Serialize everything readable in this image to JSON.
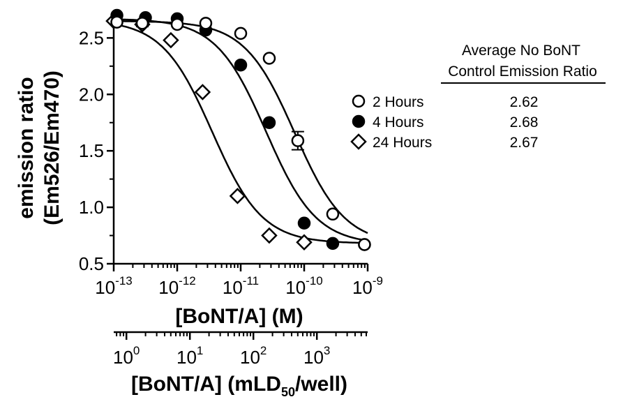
{
  "chart_data": {
    "type": "scatter",
    "ylabel_line1": "emission ratio",
    "ylabel_line2": "(Em526/Em470)",
    "xlabel": "[BoNT/A] (M)",
    "xlabel2_main": "[BoNT/A] (mLD",
    "xlabel2_sub": "50",
    "xlabel2_end": "/well)",
    "xlim_log10": [
      -13,
      -9
    ],
    "ylim": [
      0.5,
      2.7
    ],
    "yticks": [
      {
        "value": 0.5,
        "label": "0.5"
      },
      {
        "value": 1.0,
        "label": "1.0"
      },
      {
        "value": 1.5,
        "label": "1.5"
      },
      {
        "value": 2.0,
        "label": "2.0"
      },
      {
        "value": 2.5,
        "label": "2.5"
      }
    ],
    "xticks": [
      {
        "exp": -13,
        "base": "10",
        "sup": "-13"
      },
      {
        "exp": -12,
        "base": "10",
        "sup": "-12"
      },
      {
        "exp": -11,
        "base": "10",
        "sup": "-11"
      },
      {
        "exp": -10,
        "base": "10",
        "sup": "-10"
      },
      {
        "exp": -9,
        "base": "10",
        "sup": "-9"
      }
    ],
    "x2_offset_log10": 12.8,
    "x2_range_log10": [
      -0.2,
      3.8
    ],
    "x2ticks": [
      {
        "exp": 0,
        "base": "10",
        "sup": "0"
      },
      {
        "exp": 1,
        "base": "10",
        "sup": "1"
      },
      {
        "exp": 2,
        "base": "10",
        "sup": "2"
      },
      {
        "exp": 3,
        "base": "10",
        "sup": "3"
      }
    ],
    "series": [
      {
        "name": "2 Hours",
        "marker": "open-circle",
        "x_log10": [
          -12.95,
          -12.55,
          -12.0,
          -11.55,
          -11.0,
          -10.55,
          -10.1,
          -9.55,
          -9.05
        ],
        "y": [
          2.64,
          2.63,
          2.62,
          2.63,
          2.54,
          2.32,
          1.59,
          0.94,
          0.67
        ],
        "err": [
          0,
          0,
          0,
          0,
          0,
          0,
          0.08,
          0,
          0
        ],
        "fit": {
          "top": 2.65,
          "bottom": 0.67,
          "log_ec50": -10.15,
          "hill": 1.1
        }
      },
      {
        "name": "4 Hours",
        "marker": "filled-circle",
        "x_log10": [
          -12.95,
          -12.5,
          -12.0,
          -11.55,
          -11.0,
          -10.55,
          -10.0,
          -9.55,
          -9.05
        ],
        "y": [
          2.7,
          2.68,
          2.67,
          2.57,
          2.26,
          1.75,
          0.86,
          0.68,
          0.67
        ],
        "err": [
          0,
          0,
          0,
          0,
          0,
          0,
          0,
          0,
          0
        ],
        "fit": {
          "top": 2.67,
          "bottom": 0.67,
          "log_ec50": -10.6,
          "hill": 1.1
        }
      },
      {
        "name": "24 Hours",
        "marker": "open-diamond",
        "x_log10": [
          -13.0,
          -12.55,
          -12.1,
          -11.6,
          -11.05,
          -10.55,
          -10.0
        ],
        "y": [
          2.65,
          2.62,
          2.48,
          2.02,
          1.1,
          0.75,
          0.69
        ],
        "err": [
          0,
          0.02,
          0,
          0,
          0,
          0,
          0
        ],
        "fit": {
          "top": 2.66,
          "bottom": 0.68,
          "log_ec50": -11.45,
          "hill": 1.1
        }
      }
    ],
    "table": {
      "header_line1": "Average No BoNT",
      "header_line2": "Control Emission Ratio",
      "values": [
        "2.62",
        "2.68",
        "2.67"
      ]
    }
  }
}
